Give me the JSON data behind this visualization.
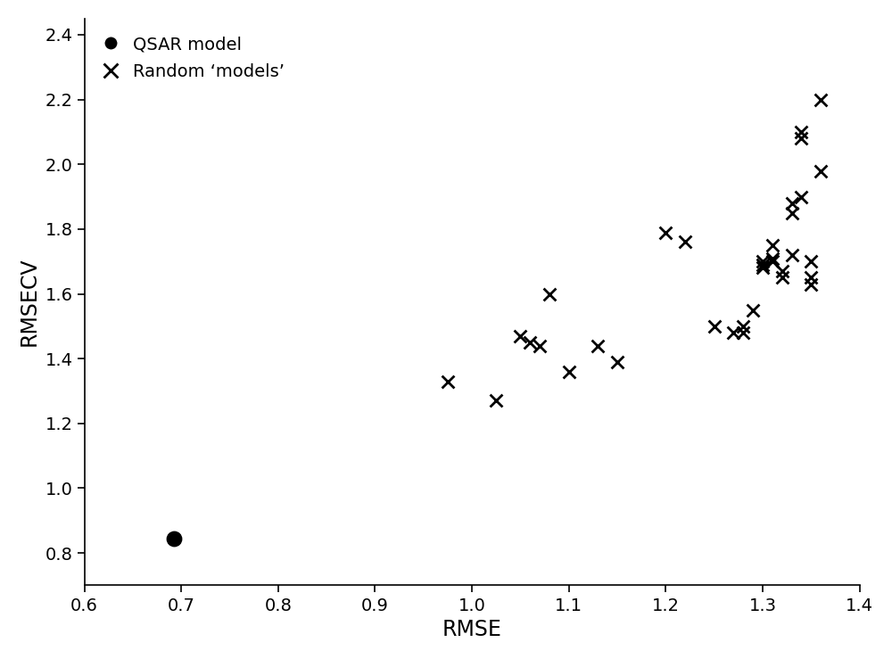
{
  "qsar_x": [
    0.692
  ],
  "qsar_y": [
    0.845
  ],
  "random_x": [
    0.975,
    1.025,
    1.05,
    1.06,
    1.07,
    1.08,
    1.1,
    1.13,
    1.15,
    1.2,
    1.22,
    1.25,
    1.27,
    1.28,
    1.28,
    1.29,
    1.3,
    1.3,
    1.3,
    1.31,
    1.31,
    1.31,
    1.32,
    1.32,
    1.33,
    1.33,
    1.33,
    1.34,
    1.34,
    1.34,
    1.35,
    1.35,
    1.35,
    1.36,
    1.36
  ],
  "random_y": [
    1.33,
    1.27,
    1.47,
    1.45,
    1.44,
    1.6,
    1.36,
    1.44,
    1.39,
    1.79,
    1.76,
    1.5,
    1.48,
    1.5,
    1.48,
    1.55,
    1.7,
    1.68,
    1.69,
    1.71,
    1.7,
    1.75,
    1.67,
    1.65,
    1.88,
    1.85,
    1.72,
    1.9,
    2.08,
    2.1,
    1.63,
    1.65,
    1.7,
    2.2,
    1.98
  ],
  "xlim": [
    0.6,
    1.4
  ],
  "ylim": [
    0.7,
    2.45
  ],
  "xticks": [
    0.6,
    0.7,
    0.8,
    0.9,
    1.0,
    1.1,
    1.2,
    1.3,
    1.4
  ],
  "yticks": [
    0.8,
    1.0,
    1.2,
    1.4,
    1.6,
    1.8,
    2.0,
    2.2,
    2.4
  ],
  "xlabel": "RMSE",
  "ylabel": "RMSECV",
  "legend_qsar": "QSAR model",
  "legend_random": "Random ‘models’",
  "marker_color": "#000000",
  "fontsize_label": 17,
  "fontsize_tick": 14,
  "fontsize_legend": 14,
  "fig_width": 10.0,
  "fig_height": 7.39,
  "dpi": 100
}
